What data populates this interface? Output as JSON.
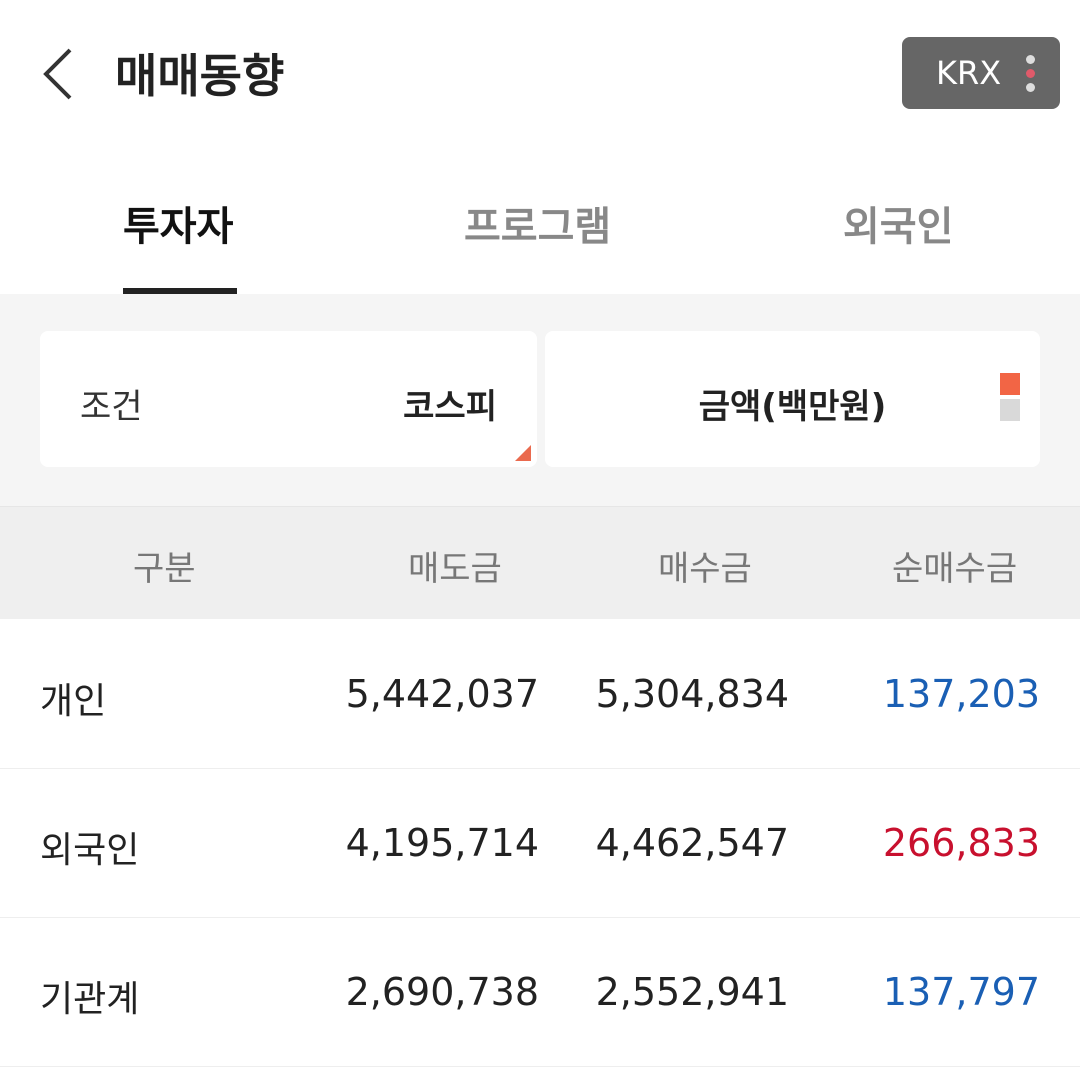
{
  "header": {
    "title": "매매동향",
    "exchange": "KRX",
    "back_icon": "chevron-left-icon",
    "menu_icon": "kebab-menu-icon"
  },
  "tabs": [
    {
      "label": "투자자",
      "active": true
    },
    {
      "label": "프로그램",
      "active": false
    },
    {
      "label": "외국인",
      "active": false
    }
  ],
  "filter": {
    "condition_label": "조건",
    "condition_value": "코스피",
    "amount_label": "금액(백만원)"
  },
  "table": {
    "headers": [
      "구분",
      "매도금",
      "매수금",
      "순매수금"
    ],
    "rows": [
      {
        "name": "개인",
        "sell": "5,442,037",
        "buy": "5,304,834",
        "net": "137,203",
        "net_color": "#1a5fb4"
      },
      {
        "name": "외국인",
        "sell": "4,195,714",
        "buy": "4,462,547",
        "net": "266,833",
        "net_color": "#c8102e"
      },
      {
        "name": "기관계",
        "sell": "2,690,738",
        "buy": "2,552,941",
        "net": "137,797",
        "net_color": "#1a5fb4"
      }
    ]
  },
  "colors": {
    "accent": "#f26545",
    "up": "#c8102e",
    "down": "#1a5fb4"
  }
}
